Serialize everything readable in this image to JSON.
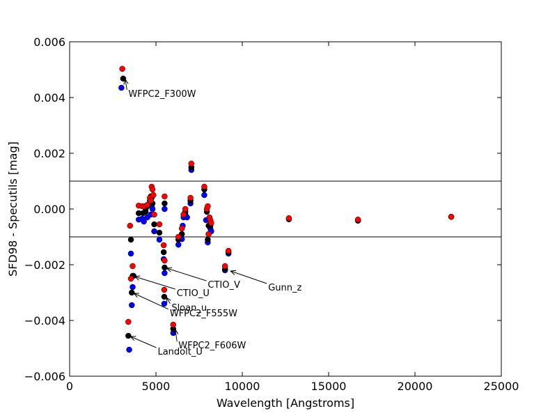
{
  "chart_data": {
    "type": "scatter",
    "xlabel": "Wavelength [Angstroms]",
    "ylabel": "SFD98 - Specutils [mag]",
    "xlim": [
      0,
      25000
    ],
    "ylim": [
      -0.006,
      0.006
    ],
    "xticks": [
      0,
      5000,
      10000,
      15000,
      20000,
      25000
    ],
    "xtick_labels": [
      "0",
      "5000",
      "10000",
      "15000",
      "20000",
      "25000"
    ],
    "yticks": [
      -0.006,
      -0.004,
      -0.002,
      0.0,
      0.002,
      0.004,
      0.006
    ],
    "ytick_labels": [
      "−0.006",
      "−0.004",
      "−0.002",
      "0.000",
      "0.002",
      "0.004",
      "0.006"
    ],
    "grid": false,
    "hlines": [
      0.001,
      -0.001
    ],
    "series": [
      {
        "color": "#0000ff",
        "x": [
          3000,
          3450,
          3550,
          3600,
          3650,
          3700,
          4000,
          4200,
          4300,
          4400,
          4500,
          4650,
          4700,
          4750,
          4800,
          4900,
          5200,
          5450,
          5480,
          5500,
          5500,
          6000,
          6300,
          6500,
          6550,
          6600,
          6700,
          6800,
          7000,
          7050,
          7800,
          7900,
          8000,
          8050,
          8100,
          8150,
          8200,
          9000,
          9200,
          12700,
          16700,
          22100
        ],
        "y": [
          0.00435,
          -0.00505,
          -0.0016,
          -0.00345,
          -0.0028,
          -0.0024,
          -0.00038,
          -0.00035,
          -0.00045,
          0.0,
          -0.0003,
          0.0003,
          -0.0002,
          0.0001,
          0.0,
          -0.0008,
          -0.0011,
          -0.0018,
          -0.0034,
          -0.0023,
          0.0,
          -0.00445,
          -0.00128,
          -0.00108,
          -0.0006,
          -0.0003,
          -0.0002,
          -0.0003,
          0.0002,
          0.0014,
          0.0005,
          -0.0004,
          -0.0012,
          -0.0009,
          -0.0004,
          -0.0007,
          -0.0008,
          -0.0022,
          -0.0016,
          -0.00037,
          -0.00042,
          -0.00028
        ]
      },
      {
        "color": "#000000",
        "x": [
          3100,
          3400,
          3550,
          3600,
          3650,
          4000,
          4250,
          4400,
          4500,
          4650,
          4700,
          4750,
          4800,
          4900,
          5200,
          5450,
          5480,
          5500,
          5500,
          6000,
          6300,
          6500,
          6600,
          6700,
          7000,
          7050,
          7800,
          7950,
          8000,
          8050,
          8150,
          9000,
          9200,
          12700,
          16700,
          22100
        ],
        "y": [
          0.00468,
          -0.00455,
          -0.0011,
          -0.003,
          -0.0024,
          -0.00015,
          -0.00015,
          -0.0001,
          0.0001,
          0.0002,
          0.00045,
          0.0004,
          0.0002,
          -0.00055,
          -0.00085,
          -0.00155,
          -0.00315,
          -0.0021,
          0.0002,
          -0.0043,
          -0.0011,
          -0.0009,
          -0.0002,
          -0.0001,
          0.0003,
          0.0015,
          0.0007,
          -0.0001,
          -0.0011,
          -0.0006,
          -0.0006,
          -0.00215,
          -0.00155,
          -0.00035,
          -0.0004,
          -0.00028
        ]
      },
      {
        "color": "#ff0000",
        "x": [
          3050,
          3400,
          3500,
          3550,
          3650,
          4000,
          4200,
          4350,
          4500,
          4650,
          4700,
          4750,
          4800,
          4850,
          4900,
          5200,
          5450,
          5480,
          5500,
          5500,
          6000,
          6300,
          6500,
          6600,
          6700,
          7000,
          7050,
          7800,
          7950,
          8000,
          8050,
          8100,
          8150,
          8200,
          9000,
          9200,
          12700,
          16700,
          22100
        ],
        "y": [
          0.00503,
          -0.00405,
          -0.0006,
          -0.0025,
          -0.00205,
          0.00012,
          0.0001,
          0.0001,
          0.00015,
          0.0004,
          0.0003,
          0.0008,
          0.0007,
          0.0005,
          -0.0002,
          -0.00055,
          -0.0013,
          -0.0029,
          -0.00185,
          0.00045,
          -0.00415,
          -0.001,
          -0.0007,
          -0.0002,
          0.0,
          0.0004,
          0.00163,
          0.0008,
          0.0,
          0.0001,
          -0.0009,
          -0.0003,
          -0.0004,
          -0.0005,
          -0.00205,
          -0.0015,
          -0.00033,
          -0.00038,
          -0.00028
        ]
      }
    ],
    "annotations": [
      {
        "text": "WFPC2_F300W",
        "x": 3100,
        "y": 0.00468,
        "tx": 3400,
        "ty": 0.00415
      },
      {
        "text": "CTIO_V",
        "x": 5500,
        "y": -0.0021,
        "tx": 8000,
        "ty": -0.0027
      },
      {
        "text": "Gunn_z",
        "x": 9200,
        "y": -0.0022,
        "tx": 11500,
        "ty": -0.0028
      },
      {
        "text": "CTIO_U",
        "x": 3650,
        "y": -0.0024,
        "tx": 6200,
        "ty": -0.003
      },
      {
        "text": "Sloan_u",
        "x": 5480,
        "y": -0.00315,
        "tx": 5900,
        "ty": -0.00352
      },
      {
        "text": "WFPC2_F555W",
        "x": 3600,
        "y": -0.003,
        "tx": 5800,
        "ty": -0.00372
      },
      {
        "text": "WFPC2_F606W",
        "x": 6000,
        "y": -0.0043,
        "tx": 6300,
        "ty": -0.00488
      },
      {
        "text": "Landolt_U",
        "x": 3400,
        "y": -0.00455,
        "tx": 5100,
        "ty": -0.0051
      }
    ]
  }
}
